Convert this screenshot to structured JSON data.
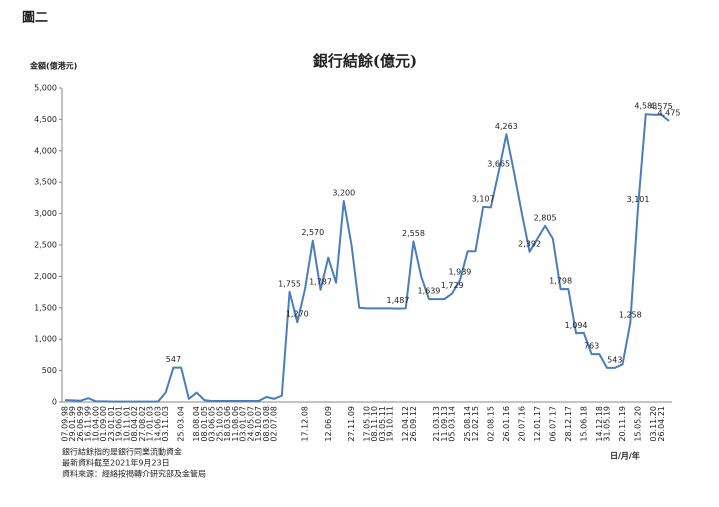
{
  "figure_label": "圖二",
  "chart_data": {
    "type": "line",
    "title": "銀行結餘(億元)",
    "y_label": "金額(億港元)",
    "x_label": "日/月/年",
    "categories": [
      "07.09.98",
      "29.01.99",
      "26.06.99",
      "16.11.99",
      "10.04.00",
      "01.09.00",
      "23.01.01",
      "19.06.01",
      "10.11.01",
      "08.04.02",
      "27.08.02",
      "17.01.03",
      "14.06.03",
      "03.11.03",
      null,
      "25.03.04",
      null,
      "18.08.04",
      "08.01.05",
      "03.06.05",
      "25.10.05",
      "18.03.06",
      "11.08.06",
      "03.01.07",
      "24.05.07",
      "19.10.07",
      "08.03.08",
      "02.07.08",
      null,
      null,
      null,
      "17.12.08",
      null,
      null,
      "12.06.09",
      null,
      null,
      "27.11.09",
      null,
      "17.05.10",
      "08.11.10",
      "03.05.11",
      "19.10.11",
      null,
      "12.04.12",
      "26.09.12",
      null,
      null,
      "21.03.13",
      "11.09.13",
      "05.03.14",
      null,
      "25.08.14",
      "12.02.15",
      null,
      "02.08.15",
      null,
      "26.01.16",
      null,
      "20.07.16",
      null,
      "12.01.17",
      null,
      "06.07.17",
      null,
      "28.12.17",
      null,
      "15.06.18",
      null,
      "14.12.18",
      "31.05.19",
      null,
      "20.11.19",
      null,
      "15.05.20",
      null,
      "03.11.20",
      "26.04.21",
      null
    ],
    "series": [
      {
        "color": "#4a7ebb",
        "values": [
          30,
          25,
          20,
          60,
          10,
          10,
          5,
          5,
          5,
          5,
          5,
          5,
          5,
          150,
          547,
          547,
          50,
          150,
          30,
          15,
          15,
          15,
          15,
          15,
          15,
          15,
          80,
          50,
          100,
          1755,
          1270,
          1800,
          2570,
          1787,
          2300,
          1900,
          3200,
          2500,
          1500,
          1490,
          1490,
          1490,
          1490,
          1487,
          1490,
          2558,
          2000,
          1639,
          1639,
          1639,
          1729,
          1939,
          2400,
          2400,
          3107,
          3100,
          3665,
          4263,
          3650,
          3000,
          2392,
          2600,
          2805,
          2600,
          1798,
          1800,
          1094,
          1100,
          763,
          763,
          543,
          543,
          600,
          1258,
          3101,
          4583,
          4575,
          4575,
          4475
        ],
        "value_labels": [
          null,
          null,
          null,
          null,
          null,
          null,
          null,
          null,
          null,
          null,
          null,
          null,
          null,
          null,
          "547",
          null,
          null,
          null,
          null,
          null,
          null,
          null,
          null,
          null,
          null,
          null,
          null,
          null,
          null,
          "1,755",
          "1,270",
          null,
          "2,570",
          "1,787",
          null,
          null,
          "3,200",
          null,
          null,
          null,
          null,
          null,
          null,
          "1,487",
          null,
          "2,558",
          null,
          "1,639",
          null,
          null,
          "1,729",
          "1,939",
          null,
          null,
          "3,107",
          null,
          "3,665",
          "4,263",
          null,
          null,
          "2,392",
          null,
          "2,805",
          null,
          "1,798",
          null,
          "1,094",
          null,
          "763",
          null,
          null,
          "543",
          null,
          "1,258",
          "3,101",
          "4,583",
          null,
          "4,575",
          "4,475"
        ]
      }
    ],
    "ylim": [
      0,
      5000
    ],
    "yticks": [
      0,
      500,
      {
        "value": 1000,
        "label": "1,000"
      },
      {
        "value": 1500,
        "label": "1,500"
      },
      {
        "value": 2000,
        "label": "2,000"
      },
      {
        "value": 2500,
        "label": "2,500"
      },
      {
        "value": 3000,
        "label": "3,000"
      },
      {
        "value": 3500,
        "label": "3,500"
      },
      {
        "value": 4000,
        "label": "4,000"
      },
      {
        "value": 4500,
        "label": "4,500"
      },
      {
        "value": 5000,
        "label": "5,000"
      }
    ],
    "grid": false,
    "notes": [
      "銀行結餘指的是銀行同業流動資金",
      "最新資料截至2021年9月23日",
      "資料來源：經絡按揭轉介研究部及金管局"
    ]
  }
}
